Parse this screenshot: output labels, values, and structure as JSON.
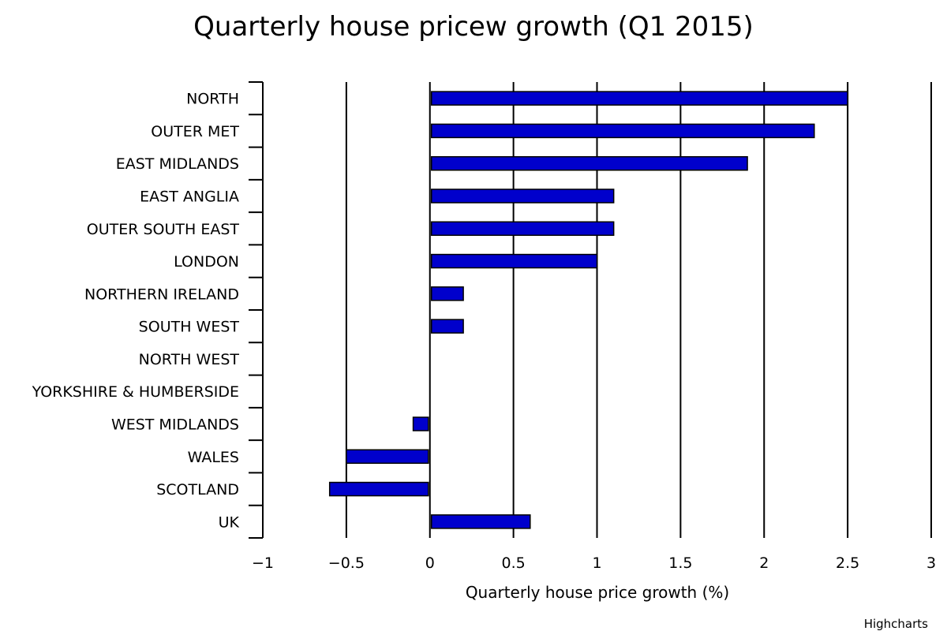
{
  "chart_data": {
    "type": "bar",
    "orientation": "horizontal",
    "title": "Quarterly house pricew growth (Q1 2015)",
    "xlabel": "Quarterly house price growth (%)",
    "ylabel": "",
    "categories": [
      "NORTH",
      "OUTER MET",
      "EAST MIDLANDS",
      "EAST ANGLIA",
      "OUTER SOUTH EAST",
      "LONDON",
      "NORTHERN IRELAND",
      "SOUTH WEST",
      "NORTH WEST",
      "YORKSHIRE & HUMBERSIDE",
      "WEST MIDLANDS",
      "WALES",
      "SCOTLAND",
      "UK"
    ],
    "values": [
      2.5,
      2.3,
      1.9,
      1.1,
      1.1,
      1.0,
      0.2,
      0.2,
      0,
      0,
      -0.1,
      -0.5,
      -0.6,
      0.6
    ],
    "xlim": [
      -1,
      3
    ],
    "ticks": [
      "−1",
      "−0.5",
      "0",
      "0.5",
      "1",
      "1.5",
      "2",
      "2.5",
      "3"
    ],
    "tick_values": [
      -1,
      -0.5,
      0,
      0.5,
      1,
      1.5,
      2,
      2.5,
      3
    ],
    "grid": true,
    "bar_color": "#0000cc",
    "bar_border_color": "#000000",
    "credits": "Highcharts"
  }
}
